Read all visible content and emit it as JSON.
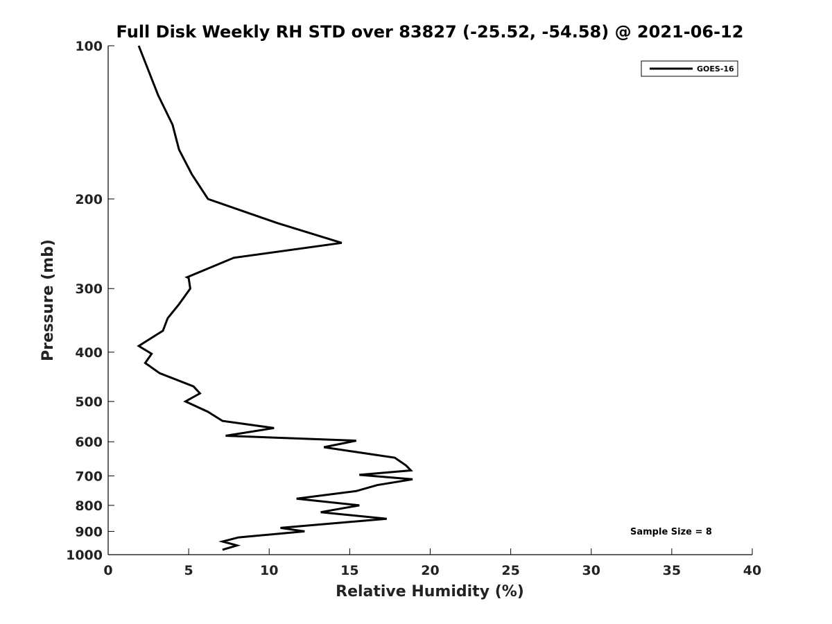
{
  "chart_data": {
    "type": "line",
    "title": "Full Disk Weekly RH STD over 83827 (-25.52, -54.58) @ 2021-06-12",
    "xlabel": "Relative Humidity (%)",
    "ylabel": "Pressure (mb)",
    "xlim": [
      0,
      40
    ],
    "ylim": [
      100,
      1000
    ],
    "y_scale": "log",
    "y_inverted": true,
    "x_ticks": [
      "0",
      "5",
      "10",
      "15",
      "20",
      "25",
      "30",
      "35",
      "40"
    ],
    "y_ticks": [
      "100",
      "200",
      "300",
      "400",
      "500",
      "600",
      "700",
      "800",
      "900",
      "1000"
    ],
    "grid": false,
    "legend_position": "top-right",
    "annotation": "Sample Size = 8",
    "series": [
      {
        "name": "GOES-16",
        "color": "#000000",
        "points": [
          [
            1.9,
            100
          ],
          [
            3.1,
            125
          ],
          [
            4.0,
            143
          ],
          [
            4.4,
            160
          ],
          [
            5.2,
            179
          ],
          [
            6.2,
            200
          ],
          [
            10.5,
            223
          ],
          [
            14.5,
            244
          ],
          [
            7.8,
            261
          ],
          [
            4.9,
            285
          ],
          [
            5.0,
            286
          ],
          [
            5.1,
            300
          ],
          [
            4.4,
            322
          ],
          [
            3.7,
            343
          ],
          [
            3.4,
            363
          ],
          [
            1.9,
            389
          ],
          [
            2.7,
            403
          ],
          [
            2.3,
            420
          ],
          [
            3.2,
            440
          ],
          [
            5.3,
            467
          ],
          [
            5.7,
            482
          ],
          [
            4.8,
            500
          ],
          [
            6.2,
            524
          ],
          [
            7.1,
            546
          ],
          [
            10.3,
            564
          ],
          [
            7.3,
            584
          ],
          [
            15.4,
            597
          ],
          [
            13.4,
            615
          ],
          [
            17.8,
            645
          ],
          [
            18.5,
            668
          ],
          [
            18.8,
            683
          ],
          [
            15.6,
            697
          ],
          [
            18.9,
            711
          ],
          [
            16.7,
            730
          ],
          [
            15.4,
            750
          ],
          [
            11.7,
            776
          ],
          [
            15.6,
            800
          ],
          [
            13.2,
            825
          ],
          [
            17.3,
            850
          ],
          [
            10.7,
            886
          ],
          [
            12.2,
            900
          ],
          [
            8.1,
            925
          ],
          [
            7.1,
            942
          ],
          [
            8.0,
            959
          ],
          [
            7.1,
            978
          ]
        ]
      }
    ]
  }
}
